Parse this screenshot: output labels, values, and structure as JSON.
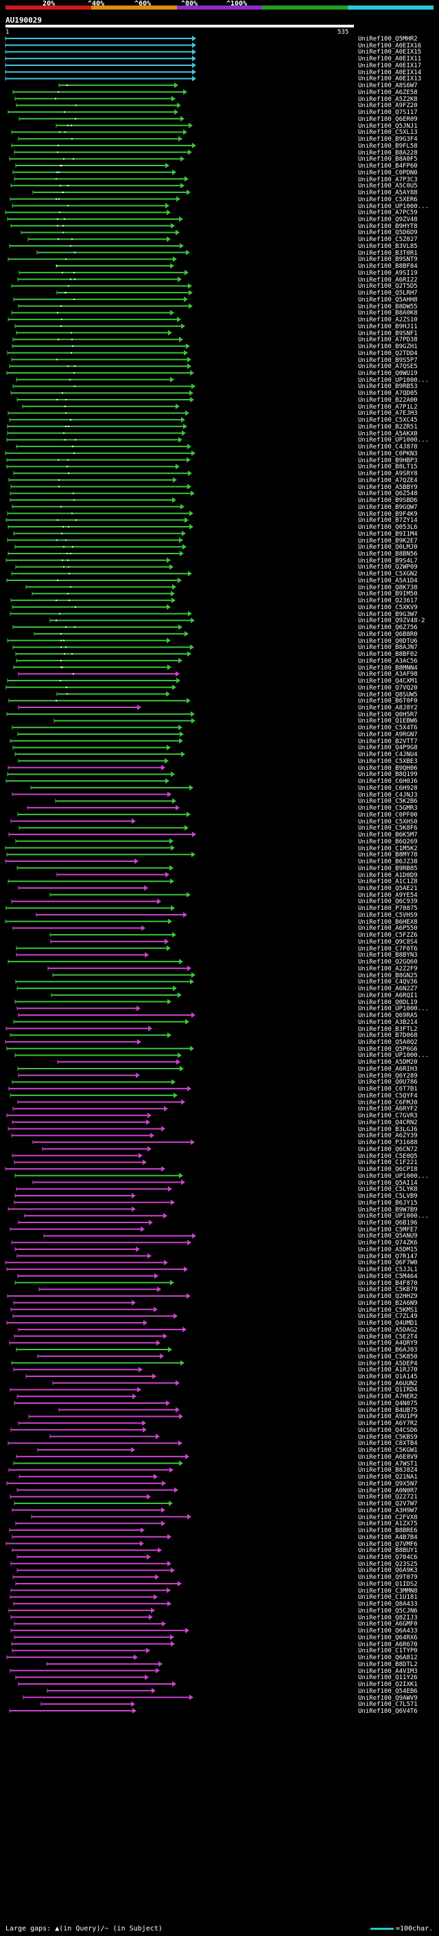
{
  "legend": {
    "labels": [
      "20%",
      "^40%",
      "^60%",
      "^80%",
      "^100%"
    ],
    "colors": [
      "#d01818",
      "#e08a10",
      "#8a2cc8",
      "#20a020",
      "#28c8d8"
    ]
  },
  "query": {
    "id": "AU190029",
    "start": "1",
    "end": "535"
  },
  "footer": {
    "gaps_text": "Large gaps: ▲(in Query)/~ (in Subject)",
    "scale_text": "=100char."
  },
  "hits": [
    {
      "id": "UniRef100_Q5MHR2",
      "color": "cyan"
    },
    {
      "id": "UniRef100_A0EIX16",
      "color": "cyan"
    },
    {
      "id": "UniRef100_A0EIX15",
      "color": "cyan"
    },
    {
      "id": "UniRef100_A0EIX11",
      "color": "cyan"
    },
    {
      "id": "UniRef100_A0EIX17",
      "color": "cyan"
    },
    {
      "id": "UniRef100_A0EIX14",
      "color": "cyan"
    },
    {
      "id": "UniRef100_A0EIX13",
      "color": "cyan"
    },
    {
      "id": "UniRef100_A8S6W7",
      "color": "green"
    },
    {
      "id": "UniRef100_A6ZE58",
      "color": "green"
    },
    {
      "id": "UniRef100_A5Z2K8",
      "color": "green"
    },
    {
      "id": "UniRef100_A9FZ20",
      "color": "green"
    },
    {
      "id": "UniRef100_Q7S117",
      "color": "green"
    },
    {
      "id": "UniRef100_Q6ER09",
      "color": "green"
    },
    {
      "id": "UniRef100_Q5JNJ1",
      "color": "green"
    },
    {
      "id": "UniRef100_C5XL13",
      "color": "green"
    },
    {
      "id": "UniRef100_B9G3F4",
      "color": "green"
    },
    {
      "id": "UniRef100_B9FL58",
      "color": "green"
    },
    {
      "id": "UniRef100_B8A228",
      "color": "green"
    },
    {
      "id": "UniRef100_B8A0F5",
      "color": "green"
    },
    {
      "id": "UniRef100_B4FP60",
      "color": "green"
    },
    {
      "id": "UniRef100_C0PDN0",
      "color": "green"
    },
    {
      "id": "UniRef100_A7P3C3",
      "color": "green"
    },
    {
      "id": "UniRef100_A5C0U5",
      "color": "green"
    },
    {
      "id": "UniRef100_A5AY88",
      "color": "green"
    },
    {
      "id": "UniRef100_C5XER6",
      "color": "green"
    },
    {
      "id": "UniRef100_UP1000...",
      "color": "green"
    },
    {
      "id": "UniRef100_A7PC59",
      "color": "green"
    },
    {
      "id": "UniRef100_Q9ZV48",
      "color": "green"
    },
    {
      "id": "UniRef100_B9HYT8",
      "color": "green"
    },
    {
      "id": "UniRef100_Q5D6D9",
      "color": "green"
    },
    {
      "id": "UniRef100_C5Z027",
      "color": "green"
    },
    {
      "id": "UniRef100_B3VL85",
      "color": "green"
    },
    {
      "id": "UniRef100_B3T0R1",
      "color": "green"
    },
    {
      "id": "UniRef100_B9SNT9",
      "color": "green"
    },
    {
      "id": "UniRef100_B8BF84",
      "color": "green"
    },
    {
      "id": "UniRef100_A9SI19",
      "color": "green"
    },
    {
      "id": "UniRef100_A6RI22",
      "color": "green"
    },
    {
      "id": "UniRef100_Q2T5D5",
      "color": "green"
    },
    {
      "id": "UniRef100_Q5LRH7",
      "color": "green"
    },
    {
      "id": "UniRef100_Q5AHH8",
      "color": "green"
    },
    {
      "id": "UniRef100_B8DW55",
      "color": "green"
    },
    {
      "id": "UniRef100_B8A0K8",
      "color": "green"
    },
    {
      "id": "UniRef100_A2ZS10",
      "color": "green"
    },
    {
      "id": "UniRef100_B9HJ11",
      "color": "green"
    },
    {
      "id": "UniRef100_B9SNF1",
      "color": "green"
    },
    {
      "id": "UniRef100_A7PD38",
      "color": "green"
    },
    {
      "id": "UniRef100_B9GZH1",
      "color": "green"
    },
    {
      "id": "UniRef100_Q2TDD4",
      "color": "green"
    },
    {
      "id": "UniRef100_B9S5P7",
      "color": "green"
    },
    {
      "id": "UniRef100_A7QSE5",
      "color": "green"
    },
    {
      "id": "UniRef100_Q0WU19",
      "color": "green"
    },
    {
      "id": "UniRef100_UP1000...",
      "color": "green"
    },
    {
      "id": "UniRef100_B9RB53",
      "color": "green"
    },
    {
      "id": "UniRef100_A7QD05",
      "color": "green"
    },
    {
      "id": "UniRef100_B22A00",
      "color": "green"
    },
    {
      "id": "UniRef100_A7P1L2",
      "color": "green"
    },
    {
      "id": "UniRef100_A7EJH3",
      "color": "green"
    },
    {
      "id": "UniRef100_C5XC45",
      "color": "green"
    },
    {
      "id": "UniRef100_B2ZR51",
      "color": "green"
    },
    {
      "id": "UniRef100_A5AKX0",
      "color": "green"
    },
    {
      "id": "UniRef100_UP1000...",
      "color": "green"
    },
    {
      "id": "UniRef100_C4J878",
      "color": "green"
    },
    {
      "id": "UniRef100_C0PKN3",
      "color": "green"
    },
    {
      "id": "UniRef100_B9HBP3",
      "color": "green"
    },
    {
      "id": "UniRef100_B8LT15",
      "color": "green"
    },
    {
      "id": "UniRef100_A9SRY8",
      "color": "green"
    },
    {
      "id": "UniRef100_A7QZE4",
      "color": "green"
    },
    {
      "id": "UniRef100_A5BBY9",
      "color": "green"
    },
    {
      "id": "UniRef100_Q6Z548",
      "color": "green"
    },
    {
      "id": "UniRef100_B9SBD6",
      "color": "green"
    },
    {
      "id": "UniRef100_B9GQW7",
      "color": "green"
    },
    {
      "id": "UniRef100_B9F4K9",
      "color": "green"
    },
    {
      "id": "UniRef100_B7ZY14",
      "color": "green"
    },
    {
      "id": "UniRef100_Q053L6",
      "color": "green"
    },
    {
      "id": "UniRef100_B9I1M4",
      "color": "green"
    },
    {
      "id": "UniRef100_B9K2E7",
      "color": "green"
    },
    {
      "id": "UniRef100_Q0LMJ0",
      "color": "green"
    },
    {
      "id": "UniRef100_B8BN56",
      "color": "green"
    },
    {
      "id": "UniRef100_B9S4L7",
      "color": "green"
    },
    {
      "id": "UniRef100_Q2WP09",
      "color": "green"
    },
    {
      "id": "UniRef100_C5XGN2",
      "color": "green"
    },
    {
      "id": "UniRef100_A5A1D4",
      "color": "green"
    },
    {
      "id": "UniRef100_Q8K738",
      "color": "green"
    },
    {
      "id": "UniRef100_B9IM50",
      "color": "green"
    },
    {
      "id": "UniRef100_Q23617",
      "color": "green"
    },
    {
      "id": "UniRef100_C5XKV9",
      "color": "green"
    },
    {
      "id": "UniRef100_B9G3W7",
      "color": "green"
    },
    {
      "id": "UniRef100_Q9ZV48-2",
      "color": "green"
    },
    {
      "id": "UniRef100_Q6Z756",
      "color": "green"
    },
    {
      "id": "UniRef100_Q6B8R0",
      "color": "green"
    },
    {
      "id": "UniRef100_Q0DTU6",
      "color": "green"
    },
    {
      "id": "UniRef100_B8AJN7",
      "color": "green"
    },
    {
      "id": "UniRef100_B8BF02",
      "color": "green"
    },
    {
      "id": "UniRef100_A3AC56",
      "color": "green"
    },
    {
      "id": "UniRef100_B8MNN4",
      "color": "green"
    },
    {
      "id": "UniRef100_A3AF98",
      "color": "magenta"
    },
    {
      "id": "UniRef100_Q4CXM1",
      "color": "green"
    },
    {
      "id": "UniRef100_Q7VQ20",
      "color": "green"
    },
    {
      "id": "UniRef100_Q8SUW5",
      "color": "green"
    },
    {
      "id": "UniRef100_B6T0F0",
      "color": "green"
    },
    {
      "id": "UniRef100_A8J8Y2",
      "color": "magenta"
    },
    {
      "id": "UniRef100_Q0H5R7",
      "color": "green"
    },
    {
      "id": "UniRef100_Q1EBW6",
      "color": "green"
    },
    {
      "id": "UniRef100_C5X4T6",
      "color": "green"
    },
    {
      "id": "UniRef100_A9RGN7",
      "color": "green"
    },
    {
      "id": "UniRef100_B2VTT7",
      "color": "green"
    },
    {
      "id": "UniRef100_Q4P9G8",
      "color": "green"
    },
    {
      "id": "UniRef100_C4JNU4",
      "color": "green"
    },
    {
      "id": "UniRef100_C5XBE3",
      "color": "green"
    },
    {
      "id": "UniRef100_B9QH06",
      "color": "magenta"
    },
    {
      "id": "UniRef100_B8Q199",
      "color": "green"
    },
    {
      "id": "UniRef100_C6H0J6",
      "color": "green"
    },
    {
      "id": "UniRef100_C6H928",
      "color": "green"
    },
    {
      "id": "UniRef100_C4JNJ3",
      "color": "magenta"
    },
    {
      "id": "UniRef100_C5K2B6",
      "color": "green"
    },
    {
      "id": "UniRef100_C5GMR3",
      "color": "magenta"
    },
    {
      "id": "UniRef100_C0PF00",
      "color": "green"
    },
    {
      "id": "UniRef100_C5XHS0",
      "color": "magenta"
    },
    {
      "id": "UniRef100_C5K8F6",
      "color": "green"
    },
    {
      "id": "UniRef100_B6K5M7",
      "color": "magenta"
    },
    {
      "id": "UniRef100_B6Q269",
      "color": "green"
    },
    {
      "id": "UniRef100_C1M5K2",
      "color": "green"
    },
    {
      "id": "UniRef100_B8MY78",
      "color": "green"
    },
    {
      "id": "UniRef100_B6JZ38",
      "color": "magenta"
    },
    {
      "id": "UniRef100_B9RB85",
      "color": "green"
    },
    {
      "id": "UniRef100_A1D0D9",
      "color": "magenta"
    },
    {
      "id": "UniRef100_A1C1Z8",
      "color": "green"
    },
    {
      "id": "UniRef100_Q5AE21",
      "color": "magenta"
    },
    {
      "id": "UniRef100_A9YE54",
      "color": "green"
    },
    {
      "id": "UniRef100_Q6C939",
      "color": "magenta"
    },
    {
      "id": "UniRef100_P70875",
      "color": "green"
    },
    {
      "id": "UniRef100_C5VHS9",
      "color": "magenta"
    },
    {
      "id": "UniRef100_B6HEX8",
      "color": "green"
    },
    {
      "id": "UniRef100_A6P550",
      "color": "magenta"
    },
    {
      "id": "UniRef100_C5FZZ6",
      "color": "green"
    },
    {
      "id": "UniRef100_Q9C8S4",
      "color": "magenta"
    },
    {
      "id": "UniRef100_C7F0T6",
      "color": "green"
    },
    {
      "id": "UniRef100_B8BYN3",
      "color": "magenta"
    },
    {
      "id": "UniRef100_Q2GQ60",
      "color": "green"
    },
    {
      "id": "UniRef100_A2Z2F9",
      "color": "magenta"
    },
    {
      "id": "UniRef100_B8GN25",
      "color": "green"
    },
    {
      "id": "UniRef100_C4QV36",
      "color": "green"
    },
    {
      "id": "UniRef100_A6N2Z7",
      "color": "green"
    },
    {
      "id": "UniRef100_A6RQI1",
      "color": "green"
    },
    {
      "id": "UniRef100_Q0DL19",
      "color": "green"
    },
    {
      "id": "UniRef100_UP1000...",
      "color": "magenta"
    },
    {
      "id": "UniRef100_Q69RA5",
      "color": "magenta"
    },
    {
      "id": "UniRef100_A3B214",
      "color": "green"
    },
    {
      "id": "UniRef100_B3FTL2",
      "color": "magenta"
    },
    {
      "id": "UniRef100_B7D068",
      "color": "green"
    },
    {
      "id": "UniRef100_Q5A0Q2",
      "color": "magenta"
    },
    {
      "id": "UniRef100_Q5P6G6",
      "color": "green"
    },
    {
      "id": "UniRef100_UP1000...",
      "color": "green"
    },
    {
      "id": "UniRef100_A5DM20",
      "color": "magenta"
    },
    {
      "id": "UniRef100_A6RIH3",
      "color": "green"
    },
    {
      "id": "UniRef100_Q6Y289",
      "color": "magenta"
    },
    {
      "id": "UniRef100_Q0U786",
      "color": "green"
    },
    {
      "id": "UniRef100_C6T7B1",
      "color": "magenta"
    },
    {
      "id": "UniRef100_C5QYF4",
      "color": "green"
    },
    {
      "id": "UniRef100_C6FMJ0",
      "color": "magenta"
    },
    {
      "id": "UniRef100_A6RYF2",
      "color": "magenta"
    },
    {
      "id": "UniRef100_C7GVR3",
      "color": "magenta"
    },
    {
      "id": "UniRef100_Q4CRN2",
      "color": "magenta"
    },
    {
      "id": "UniRef100_B3LGJ6",
      "color": "magenta"
    },
    {
      "id": "UniRef100_A6ZY39",
      "color": "magenta"
    },
    {
      "id": "UniRef100_P31688",
      "color": "magenta"
    },
    {
      "id": "UniRef100_Q6CN72",
      "color": "magenta"
    },
    {
      "id": "UniRef100_C5E0Q5",
      "color": "magenta"
    },
    {
      "id": "UniRef100_C1F221",
      "color": "magenta"
    },
    {
      "id": "UniRef100_Q6CPI8",
      "color": "magenta"
    },
    {
      "id": "UniRef100_UP1000...",
      "color": "green"
    },
    {
      "id": "UniRef100_Q5AI14",
      "color": "magenta"
    },
    {
      "id": "UniRef100_C5LYK8",
      "color": "magenta"
    },
    {
      "id": "UniRef100_C5LVB9",
      "color": "magenta"
    },
    {
      "id": "UniRef100_B6JY15",
      "color": "magenta"
    },
    {
      "id": "UniRef100_B9W7B9",
      "color": "magenta"
    },
    {
      "id": "UniRef100_UP1000...",
      "color": "magenta"
    },
    {
      "id": "UniRef100_Q6B196",
      "color": "magenta"
    },
    {
      "id": "UniRef100_C5MFE7",
      "color": "magenta"
    },
    {
      "id": "UniRef100_Q5ANU9",
      "color": "magenta"
    },
    {
      "id": "UniRef100_Q74ZK6",
      "color": "magenta"
    },
    {
      "id": "UniRef100_A5DM15",
      "color": "magenta"
    },
    {
      "id": "UniRef100_Q7R147",
      "color": "magenta"
    },
    {
      "id": "UniRef100_Q6F7W0",
      "color": "magenta"
    },
    {
      "id": "UniRef100_C5JJL1",
      "color": "magenta"
    },
    {
      "id": "UniRef100_C5M464",
      "color": "magenta"
    },
    {
      "id": "UniRef100_B4F870",
      "color": "green"
    },
    {
      "id": "UniRef100_C5KB79",
      "color": "magenta"
    },
    {
      "id": "UniRef100_Q2HHZ9",
      "color": "magenta"
    },
    {
      "id": "UniRef100_B2A6N9",
      "color": "magenta"
    },
    {
      "id": "UniRef100_C5KMS1",
      "color": "magenta"
    },
    {
      "id": "UniRef100_C7ZL49",
      "color": "magenta"
    },
    {
      "id": "UniRef100_Q4UMD1",
      "color": "magenta"
    },
    {
      "id": "UniRef100_A5DAG2",
      "color": "magenta"
    },
    {
      "id": "UniRef100_C5E2T4",
      "color": "magenta"
    },
    {
      "id": "UniRef100_A4QRY9",
      "color": "magenta"
    },
    {
      "id": "UniRef100_B6AJ03",
      "color": "green"
    },
    {
      "id": "UniRef100_C5K850",
      "color": "magenta"
    },
    {
      "id": "UniRef100_A5DEP4",
      "color": "green"
    },
    {
      "id": "UniRef100_A1RJ70",
      "color": "magenta"
    },
    {
      "id": "UniRef100_Q1A145",
      "color": "magenta"
    },
    {
      "id": "UniRef100_A6UUN2",
      "color": "magenta"
    },
    {
      "id": "UniRef100_Q1IRD4",
      "color": "magenta"
    },
    {
      "id": "UniRef100_A7HER2",
      "color": "magenta"
    },
    {
      "id": "UniRef100_Q4N075",
      "color": "magenta"
    },
    {
      "id": "UniRef100_B4UB75",
      "color": "magenta"
    },
    {
      "id": "UniRef100_A9U1P9",
      "color": "magenta"
    },
    {
      "id": "UniRef100_A6Y7R2",
      "color": "magenta"
    },
    {
      "id": "UniRef100_Q4CSD6",
      "color": "magenta"
    },
    {
      "id": "UniRef100_C5KBS9",
      "color": "magenta"
    },
    {
      "id": "UniRef100_C8XTB4",
      "color": "magenta"
    },
    {
      "id": "UniRef100_C5KGW1",
      "color": "magenta"
    },
    {
      "id": "UniRef100_A6E8V9",
      "color": "magenta"
    },
    {
      "id": "UniRef100_A7WST1",
      "color": "green"
    },
    {
      "id": "UniRef100_B8J8Z4",
      "color": "magenta"
    },
    {
      "id": "UniRef100_Q21NA1",
      "color": "magenta"
    },
    {
      "id": "UniRef100_Q9X5N7",
      "color": "magenta"
    },
    {
      "id": "UniRef100_A0N0R7",
      "color": "magenta"
    },
    {
      "id": "UniRef100_Q22721",
      "color": "magenta"
    },
    {
      "id": "UniRef100_Q2V7W7",
      "color": "green"
    },
    {
      "id": "UniRef100_A3H9W7",
      "color": "magenta"
    },
    {
      "id": "UniRef100_C2FVX8",
      "color": "magenta"
    },
    {
      "id": "UniRef100_A1ZX75",
      "color": "magenta"
    },
    {
      "id": "UniRef100_B8BRE6",
      "color": "magenta"
    },
    {
      "id": "UniRef100_A4B7B4",
      "color": "magenta"
    },
    {
      "id": "UniRef100_Q7VMF6",
      "color": "magenta"
    },
    {
      "id": "UniRef100_B8BUY1",
      "color": "magenta"
    },
    {
      "id": "UniRef100_Q704C6",
      "color": "magenta"
    },
    {
      "id": "UniRef100_Q23S25",
      "color": "magenta"
    },
    {
      "id": "UniRef100_Q6A9K3",
      "color": "magenta"
    },
    {
      "id": "UniRef100_Q9T079",
      "color": "magenta"
    },
    {
      "id": "UniRef100_Q1IDS2",
      "color": "magenta"
    },
    {
      "id": "UniRef100_C3MMN8",
      "color": "magenta"
    },
    {
      "id": "UniRef100_C1U181",
      "color": "magenta"
    },
    {
      "id": "UniRef100_Q8A433",
      "color": "magenta"
    },
    {
      "id": "UniRef100_Q5CJN6",
      "color": "magenta"
    },
    {
      "id": "UniRef100_Q8ZIJ3",
      "color": "magenta"
    },
    {
      "id": "UniRef100_A6GMF0",
      "color": "magenta"
    },
    {
      "id": "UniRef100_Q6A433",
      "color": "magenta"
    },
    {
      "id": "UniRef100_Q64RX6",
      "color": "magenta"
    },
    {
      "id": "UniRef100_A6R670",
      "color": "magenta"
    },
    {
      "id": "UniRef100_C1TYP0",
      "color": "magenta"
    },
    {
      "id": "UniRef100_Q6A812",
      "color": "magenta"
    },
    {
      "id": "UniRef100_B8DTL2",
      "color": "magenta"
    },
    {
      "id": "UniRef100_A4VIM3",
      "color": "magenta"
    },
    {
      "id": "UniRef100_Q11Y26",
      "color": "magenta"
    },
    {
      "id": "UniRef100_Q2IXK1",
      "color": "magenta"
    },
    {
      "id": "UniRef100_Q54EB6",
      "color": "magenta"
    },
    {
      "id": "UniRef100_Q9AWV9",
      "color": "magenta"
    },
    {
      "id": "UniRef100_C7L571",
      "color": "magenta"
    },
    {
      "id": "UniRef100_Q6V4T6",
      "color": "magenta"
    }
  ]
}
